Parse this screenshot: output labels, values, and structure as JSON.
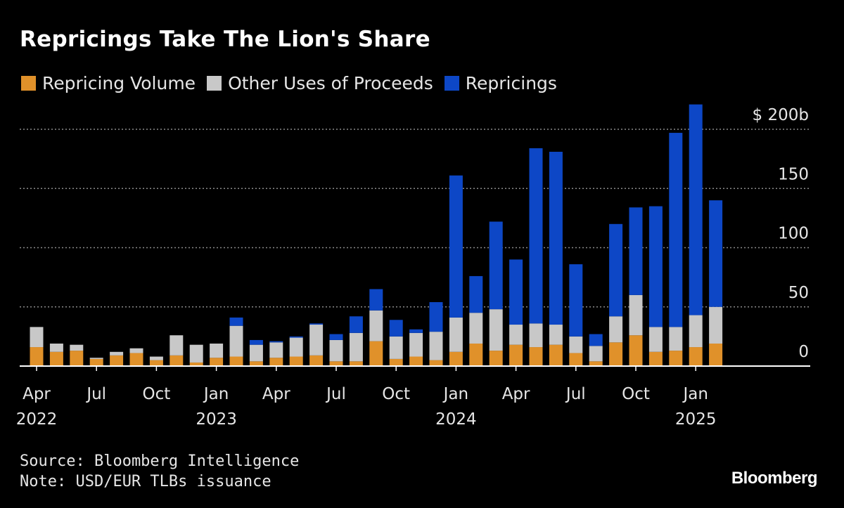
{
  "title": "Repricings Take The Lion's Share",
  "source": "Source: Bloomberg Intelligence",
  "note": "Note: USD/EUR TLBs issuance",
  "brand": "Bloomberg",
  "colors": {
    "background": "#000000",
    "repricing_volume": "#e0912a",
    "other_uses": "#c8c8c8",
    "repricings": "#0d47c6",
    "grid": "#8a8a8a",
    "text": "#e6e6e6"
  },
  "chart_data": {
    "type": "bar",
    "stacked": true,
    "title": "Repricings Take The Lion's Share",
    "xlabel": "",
    "ylabel": "",
    "ylim": [
      0,
      200
    ],
    "yticks": [
      {
        "value": 0,
        "label": "0"
      },
      {
        "value": 50,
        "label": "50"
      },
      {
        "value": 100,
        "label": "100"
      },
      {
        "value": 150,
        "label": "150"
      },
      {
        "value": 200,
        "label": "$ 200b"
      }
    ],
    "y_unit": "$ b",
    "grid": true,
    "legend_position": "top-left",
    "categories": [
      "Apr 2022",
      "May 2022",
      "Jun 2022",
      "Jul 2022",
      "Aug 2022",
      "Sep 2022",
      "Oct 2022",
      "Nov 2022",
      "Dec 2022",
      "Jan 2023",
      "Feb 2023",
      "Mar 2023",
      "Apr 2023",
      "May 2023",
      "Jun 2023",
      "Jul 2023",
      "Aug 2023",
      "Sep 2023",
      "Oct 2023",
      "Nov 2023",
      "Dec 2023",
      "Jan 2024",
      "Feb 2024",
      "Mar 2024",
      "Apr 2024",
      "May 2024",
      "Jun 2024",
      "Jul 2024",
      "Aug 2024",
      "Sep 2024",
      "Oct 2024",
      "Nov 2024",
      "Dec 2024",
      "Jan 2025",
      "Feb 2025"
    ],
    "x_tick_labels": [
      {
        "index": 0,
        "month": "Apr",
        "year": "2022"
      },
      {
        "index": 3,
        "month": "Jul",
        "year": ""
      },
      {
        "index": 6,
        "month": "Oct",
        "year": ""
      },
      {
        "index": 9,
        "month": "Jan",
        "year": "2023"
      },
      {
        "index": 12,
        "month": "Apr",
        "year": ""
      },
      {
        "index": 15,
        "month": "Jul",
        "year": ""
      },
      {
        "index": 18,
        "month": "Oct",
        "year": ""
      },
      {
        "index": 21,
        "month": "Jan",
        "year": "2024"
      },
      {
        "index": 24,
        "month": "Apr",
        "year": ""
      },
      {
        "index": 27,
        "month": "Jul",
        "year": ""
      },
      {
        "index": 30,
        "month": "Oct",
        "year": ""
      },
      {
        "index": 33,
        "month": "Jan",
        "year": "2025"
      }
    ],
    "series": [
      {
        "name": "Repricing Volume",
        "color": "#e0912a",
        "values": [
          16,
          12,
          13,
          6,
          9,
          11,
          5,
          9,
          3,
          7,
          8,
          4,
          7,
          8,
          9,
          4,
          4,
          21,
          6,
          8,
          5,
          12,
          19,
          13,
          18,
          16,
          18,
          11,
          4,
          20,
          26,
          12,
          13,
          16,
          19
        ]
      },
      {
        "name": "Other Uses of Proceeds",
        "color": "#c8c8c8",
        "values": [
          17,
          7,
          5,
          1,
          3,
          4,
          3,
          17,
          15,
          12,
          26,
          14,
          13,
          16,
          26,
          18,
          24,
          26,
          19,
          20,
          24,
          29,
          26,
          35,
          17,
          20,
          17,
          14,
          13,
          22,
          34,
          21,
          20,
          27,
          31
        ]
      },
      {
        "name": "Repricings",
        "color": "#0d47c6",
        "values": [
          0,
          0,
          0,
          0,
          0,
          0,
          0,
          0,
          0,
          0,
          7,
          4,
          1,
          1,
          1,
          5,
          14,
          18,
          14,
          3,
          25,
          120,
          31,
          74,
          55,
          148,
          146,
          61,
          10,
          78,
          74,
          102,
          164,
          178,
          90
        ]
      }
    ]
  }
}
